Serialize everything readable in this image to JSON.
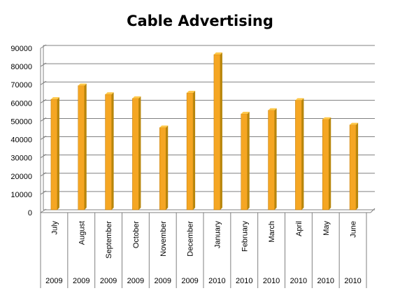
{
  "chart_data": {
    "type": "bar",
    "title": "Cable Advertising",
    "xlabel": "",
    "ylabel": "",
    "ylim": [
      0,
      90000
    ],
    "yticks": [
      0,
      10000,
      20000,
      30000,
      40000,
      50000,
      60000,
      70000,
      80000,
      90000
    ],
    "grid": true,
    "categories": [
      "July",
      "August",
      "September",
      "October",
      "November",
      "December",
      "January",
      "February",
      "March",
      "April",
      "May",
      "June"
    ],
    "years": [
      "2009",
      "2009",
      "2009",
      "2009",
      "2009",
      "2009",
      "2010",
      "2010",
      "2010",
      "2010",
      "2010",
      "2010"
    ],
    "values": [
      60500,
      68000,
      63200,
      61000,
      45000,
      64000,
      85000,
      52500,
      54500,
      60000,
      49500,
      46500
    ],
    "colors": {
      "bar": "#f5a623",
      "bar_side": "#b8860b",
      "bar_top": "#ffc84a",
      "grid": "#808080"
    }
  }
}
